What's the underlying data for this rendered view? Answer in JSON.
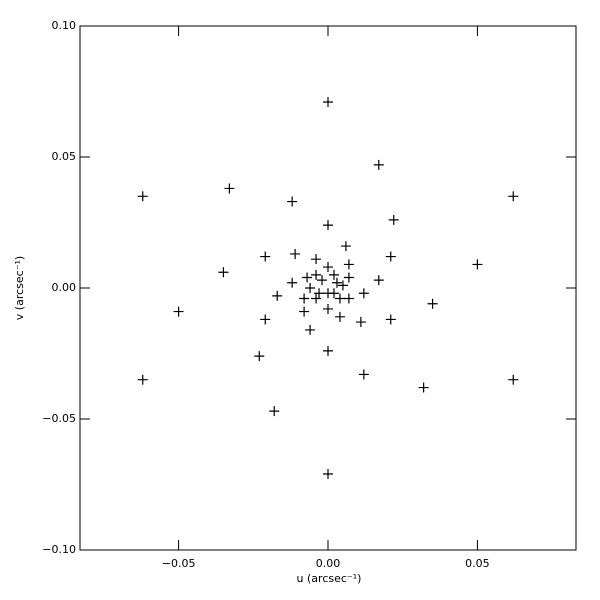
{
  "chart_data": {
    "type": "scatter",
    "x_label": "u (arcsec⁻¹)",
    "y_label": "v (arcsec⁻¹)",
    "xlim": [
      -0.083,
      0.083
    ],
    "ylim": [
      -0.1,
      0.1
    ],
    "xticks": [
      {
        "value": -0.05,
        "label": "−0.05"
      },
      {
        "value": 0,
        "label": "0.00"
      },
      {
        "value": 0.05,
        "label": "0.05"
      }
    ],
    "yticks": [
      {
        "value": -0.1,
        "label": "−0.10"
      },
      {
        "value": -0.05,
        "label": "−0.05"
      },
      {
        "value": 0,
        "label": "0.00"
      },
      {
        "value": 0.05,
        "label": "0.05"
      },
      {
        "value": 0.1,
        "label": "0.10"
      }
    ],
    "color": "#000000",
    "x": [
      0,
      0.017,
      -0.062,
      -0.033,
      -0.012,
      0,
      0.022,
      0.062,
      -0.021,
      -0.011,
      0.006,
      0.021,
      -0.035,
      0.007,
      0.05,
      -0.05,
      0.035,
      -0.021,
      0.021,
      -0.017,
      0.012,
      -0.023,
      -0.006,
      0.004,
      0.011,
      0,
      0.012,
      -0.062,
      0.032,
      0.062,
      -0.018,
      0,
      0.017,
      -0.004,
      0,
      -0.007,
      -0.004,
      0.002,
      0.007,
      -0.012,
      -0.002,
      0.003,
      -0.006,
      -0.003,
      0.005,
      0,
      -0.008,
      -0.004,
      0.002,
      0.004,
      0.007,
      -0.008,
      0
    ],
    "values": [
      0.071,
      0.047,
      0.035,
      0.038,
      0.033,
      0.024,
      0.026,
      0.035,
      0.012,
      0.013,
      0.016,
      0.012,
      0.006,
      0.009,
      0.009,
      -0.009,
      -0.006,
      -0.012,
      -0.012,
      -0.003,
      -0.002,
      -0.026,
      -0.016,
      -0.011,
      -0.013,
      -0.024,
      -0.033,
      -0.035,
      -0.038,
      -0.035,
      -0.047,
      -0.071,
      0.003,
      0.011,
      0.008,
      0.004,
      0.005,
      0.005,
      0.004,
      0.002,
      0.003,
      0.002,
      0,
      -0.002,
      0.001,
      -0.002,
      -0.004,
      -0.004,
      -0.002,
      -0.004,
      -0.004,
      -0.009,
      -0.008
    ]
  }
}
